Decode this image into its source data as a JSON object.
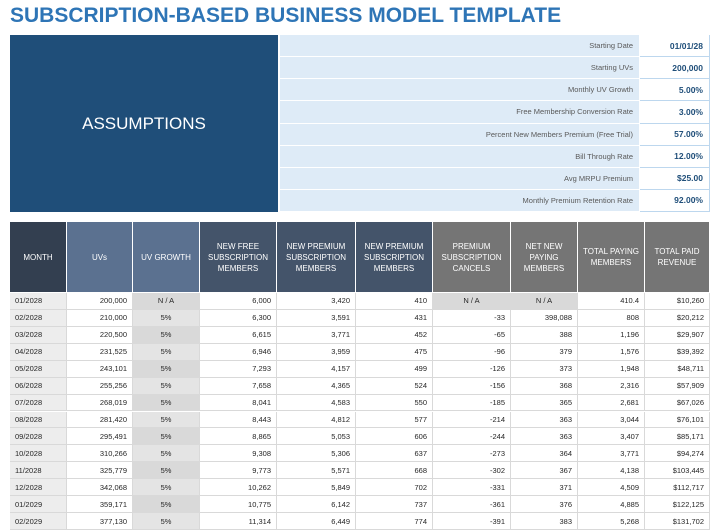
{
  "header": {
    "title": "SUBSCRIPTION-BASED BUSINESS MODEL TEMPLATE"
  },
  "assumptions": {
    "label": "ASSUMPTIONS",
    "rows": [
      [
        "Starting Date",
        "01/01/28"
      ],
      [
        "Starting UVs",
        "200,000"
      ],
      [
        "Monthly UV Growth",
        "5.00%"
      ],
      [
        "Free Membership Conversion Rate",
        "3.00%"
      ],
      [
        "Percent New Members Premium (Free Trial)",
        "57.00%"
      ],
      [
        "Bill Through Rate",
        "12.00%"
      ],
      [
        "Avg MRPU Premium",
        "$25.00"
      ],
      [
        "Monthly Premium Retention Rate",
        "92.00%"
      ]
    ]
  },
  "table": {
    "columns": [
      "MONTH",
      "UVs",
      "UV GROWTH",
      "NEW FREE SUBSCRIPTION MEMBERS",
      "NEW PREMIUM SUBSCRIPTION MEMBERS",
      "NEW PREMIUM SUBSCRIPTION MEMBERS",
      "PREMIUM SUBSCRIPTION CANCELS",
      "NET NEW PAYING MEMBERS",
      "TOTAL PAYING MEMBERS",
      "TOTAL PAID REVENUE"
    ],
    "rows": [
      [
        "01/2028",
        "200,000",
        "N / A",
        "6,000",
        "3,420",
        "410",
        "N / A",
        "N / A",
        "410.4",
        "$10,260"
      ],
      [
        "02/2028",
        "210,000",
        "5%",
        "6,300",
        "3,591",
        "431",
        "-33",
        "398,088",
        "808",
        "$20,212"
      ],
      [
        "03/2028",
        "220,500",
        "5%",
        "6,615",
        "3,771",
        "452",
        "-65",
        "388",
        "1,196",
        "$29,907"
      ],
      [
        "04/2028",
        "231,525",
        "5%",
        "6,946",
        "3,959",
        "475",
        "-96",
        "379",
        "1,576",
        "$39,392"
      ],
      [
        "05/2028",
        "243,101",
        "5%",
        "7,293",
        "4,157",
        "499",
        "-126",
        "373",
        "1,948",
        "$48,711"
      ],
      [
        "06/2028",
        "255,256",
        "5%",
        "7,658",
        "4,365",
        "524",
        "-156",
        "368",
        "2,316",
        "$57,909"
      ],
      [
        "07/2028",
        "268,019",
        "5%",
        "8,041",
        "4,583",
        "550",
        "-185",
        "365",
        "2,681",
        "$67,026"
      ],
      [
        "08/2028",
        "281,420",
        "5%",
        "8,443",
        "4,812",
        "577",
        "-214",
        "363",
        "3,044",
        "$76,101"
      ],
      [
        "09/2028",
        "295,491",
        "5%",
        "8,865",
        "5,053",
        "606",
        "-244",
        "363",
        "3,407",
        "$85,171"
      ],
      [
        "10/2028",
        "310,266",
        "5%",
        "9,308",
        "5,306",
        "637",
        "-273",
        "364",
        "3,771",
        "$94,274"
      ],
      [
        "11/2028",
        "325,779",
        "5%",
        "9,773",
        "5,571",
        "668",
        "-302",
        "367",
        "4,138",
        "$103,445"
      ],
      [
        "12/2028",
        "342,068",
        "5%",
        "10,262",
        "5,849",
        "702",
        "-331",
        "371",
        "4,509",
        "$112,717"
      ],
      [
        "01/2029",
        "359,171",
        "5%",
        "10,775",
        "6,142",
        "737",
        "-361",
        "376",
        "4,885",
        "$122,125"
      ],
      [
        "02/2029",
        "377,130",
        "5%",
        "11,314",
        "6,449",
        "774",
        "-391",
        "383",
        "5,268",
        "$131,702"
      ]
    ]
  }
}
